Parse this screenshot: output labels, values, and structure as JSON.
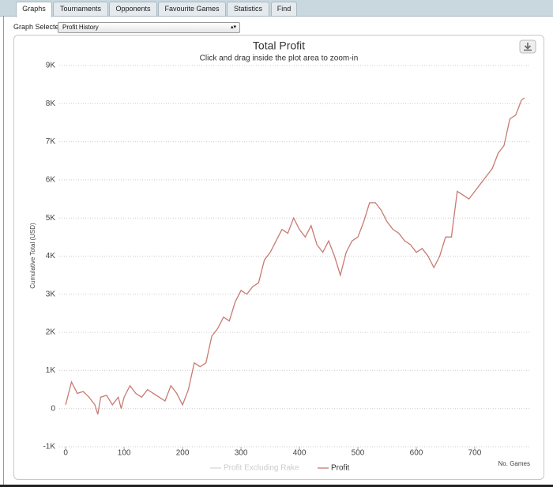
{
  "tabs": [
    "Graphs",
    "Tournaments",
    "Opponents",
    "Favourite Games",
    "Statistics",
    "Find"
  ],
  "graph_selected": {
    "label": "Graph Selected:",
    "value": "Profit History"
  },
  "chart_data": {
    "type": "line",
    "title": "Total Profit",
    "subtitle": "Click and drag inside the plot area to zoom-in",
    "y_label": "Cumulative Total (USD)",
    "x_label": "No. Games",
    "x": [
      0,
      10,
      20,
      30,
      40,
      50,
      55,
      60,
      70,
      80,
      90,
      95,
      100,
      110,
      120,
      130,
      140,
      150,
      160,
      170,
      180,
      190,
      200,
      210,
      220,
      230,
      240,
      250,
      260,
      270,
      280,
      290,
      300,
      310,
      320,
      330,
      340,
      350,
      360,
      370,
      380,
      390,
      400,
      410,
      420,
      430,
      440,
      450,
      460,
      470,
      480,
      490,
      500,
      510,
      520,
      530,
      540,
      550,
      560,
      570,
      580,
      590,
      600,
      610,
      620,
      630,
      640,
      650,
      660,
      670,
      680,
      690,
      700,
      710,
      720,
      730,
      740,
      750,
      760,
      770,
      780,
      785
    ],
    "series": [
      {
        "name": "Profit Excluding Rake",
        "color": "#d8d8d8",
        "visible": false,
        "values": [
          null,
          null,
          null,
          null,
          null,
          null,
          null,
          null,
          null,
          null,
          null,
          null,
          null,
          null,
          null,
          null,
          null,
          null,
          null,
          null,
          null,
          null,
          null,
          null,
          null,
          null,
          null,
          null,
          null,
          null,
          null,
          null,
          null,
          null,
          null,
          null,
          null,
          null,
          null,
          null,
          null,
          null,
          null,
          null,
          null,
          null,
          null,
          null,
          null,
          null,
          null,
          null,
          null,
          null,
          null,
          null,
          null,
          null,
          null,
          null,
          null,
          null,
          null,
          null,
          null,
          null,
          null,
          null,
          null,
          null,
          null,
          null,
          null,
          null,
          null,
          null,
          null,
          null,
          null,
          null,
          null,
          null
        ]
      },
      {
        "name": "Profit",
        "color": "#c97a72",
        "visible": true,
        "values": [
          100,
          700,
          400,
          450,
          300,
          100,
          -150,
          300,
          350,
          100,
          300,
          0,
          300,
          600,
          400,
          300,
          500,
          400,
          300,
          200,
          600,
          400,
          100,
          500,
          1200,
          1100,
          1200,
          1900,
          2100,
          2400,
          2300,
          2800,
          3100,
          3000,
          3200,
          3300,
          3900,
          4100,
          4400,
          4700,
          4600,
          5000,
          4700,
          4500,
          4800,
          4300,
          4100,
          4400,
          4000,
          3500,
          4100,
          4400,
          4500,
          4900,
          5400,
          5400,
          5200,
          4900,
          4700,
          4600,
          4400,
          4300,
          4100,
          4200,
          4000,
          3700,
          4000,
          4500,
          4500,
          5700,
          5600,
          5500,
          5700,
          5900,
          6100,
          6300,
          6700,
          6900,
          7600,
          7700,
          8100,
          8150
        ]
      }
    ],
    "xlim": [
      -11,
      796
    ],
    "xticks": [
      0,
      100,
      200,
      300,
      400,
      500,
      600,
      700
    ],
    "ylim": [
      -1000,
      9000
    ],
    "yticks": [
      {
        "value": -1000,
        "label": "-1K"
      },
      0,
      {
        "value": 1000,
        "label": "1K"
      },
      {
        "value": 2000,
        "label": "2K"
      },
      {
        "value": 3000,
        "label": "3K"
      },
      {
        "value": 4000,
        "label": "4K"
      },
      {
        "value": 5000,
        "label": "5K"
      },
      {
        "value": 6000,
        "label": "6K"
      },
      {
        "value": 7000,
        "label": "7K"
      },
      {
        "value": 8000,
        "label": "8K"
      },
      {
        "value": 9000,
        "label": "9K"
      }
    ],
    "grid": true
  }
}
